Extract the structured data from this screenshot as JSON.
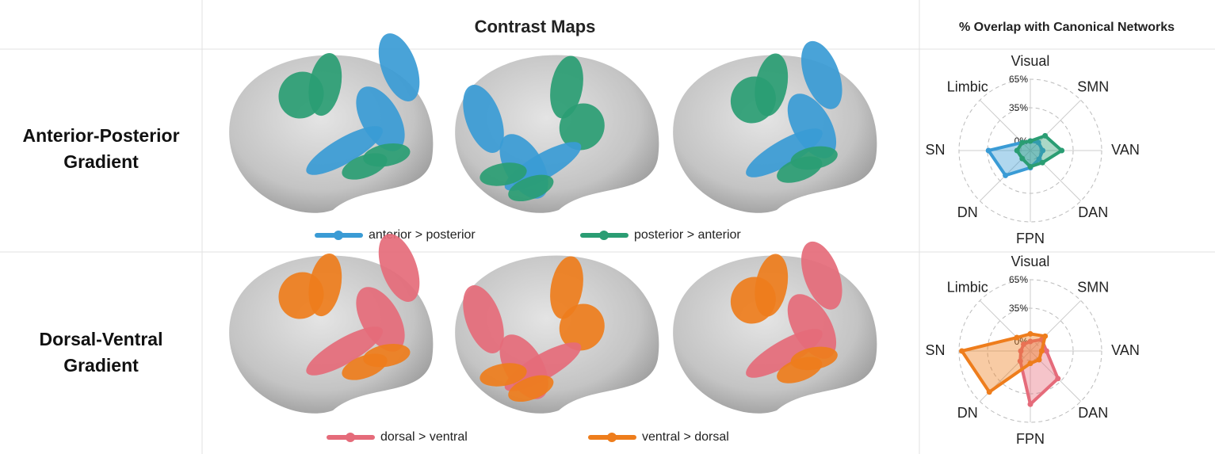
{
  "header": {
    "maps_title": "Contrast Maps",
    "overlap_title": "% Overlap with Canonical Networks"
  },
  "rows": [
    {
      "label": "Anterior-Posterior Gradient"
    },
    {
      "label": "Dorsal-Ventral Gradient"
    }
  ],
  "chart_data": [
    {
      "type": "radar",
      "categories": [
        "Visual",
        "SMN",
        "VAN",
        "DAN",
        "FPN",
        "DN",
        "SN",
        "Limbic"
      ],
      "rlim": [
        -10,
        65
      ],
      "rticks": [
        {
          "value": 0,
          "label": "0%"
        },
        {
          "value": 35,
          "label": "35%"
        },
        {
          "value": 65,
          "label": "65%"
        }
      ],
      "grid": true,
      "series": [
        {
          "name": "anterior > posterior",
          "color": "#3a9bd5",
          "values": [
            0,
            2,
            3,
            3,
            8,
            27,
            34,
            2
          ]
        },
        {
          "name": "posterior > anterior",
          "color": "#2a9d73",
          "values": [
            0,
            12,
            23,
            8,
            7,
            2,
            4,
            2
          ]
        }
      ]
    },
    {
      "type": "radar",
      "categories": [
        "Visual",
        "SMN",
        "VAN",
        "DAN",
        "FPN",
        "DN",
        "SN",
        "Limbic"
      ],
      "rlim": [
        -10,
        65
      ],
      "rticks": [
        {
          "value": 0,
          "label": "0%"
        },
        {
          "value": 35,
          "label": "35%"
        },
        {
          "value": 65,
          "label": "65%"
        }
      ],
      "grid": true,
      "series": [
        {
          "name": "dorsal > ventral",
          "color": "#e56b7a",
          "values": [
            0,
            7,
            7,
            31,
            46,
            5,
            0,
            0
          ]
        },
        {
          "name": "ventral > dorsal",
          "color": "#ee7d1c",
          "values": [
            8,
            12,
            2,
            3,
            3,
            51,
            62,
            10
          ]
        }
      ]
    }
  ]
}
